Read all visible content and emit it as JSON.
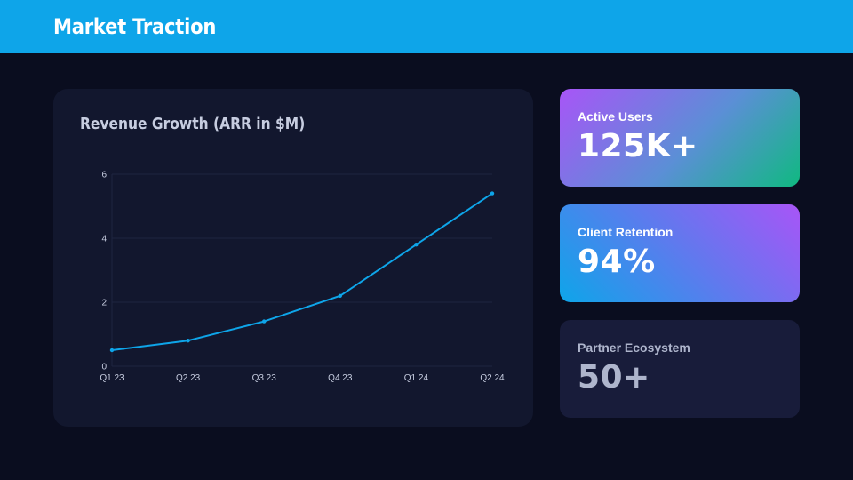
{
  "header": {
    "title": "Market Traction"
  },
  "colors": {
    "accent": "#0ea5e9",
    "background": "#0a0d1f",
    "card": "#12172e"
  },
  "chart_data": {
    "type": "line",
    "title": "Revenue Growth (ARR in $M)",
    "categories": [
      "Q1 23",
      "Q2 23",
      "Q3 23",
      "Q4 23",
      "Q1 24",
      "Q2 24"
    ],
    "series": [
      {
        "values": [
          0.5,
          0.8,
          1.4,
          2.2,
          3.8,
          5.4
        ]
      }
    ],
    "yticks": [
      0,
      2,
      4,
      6
    ],
    "ylim": [
      0,
      6
    ],
    "grid": true,
    "legend": "none",
    "color": "#0ea5e9"
  },
  "kpis": [
    {
      "label": "Active Users",
      "value": "125K+"
    },
    {
      "label": "Client Retention",
      "value": "94%"
    },
    {
      "label": "Partner Ecosystem",
      "value": "50+"
    }
  ]
}
